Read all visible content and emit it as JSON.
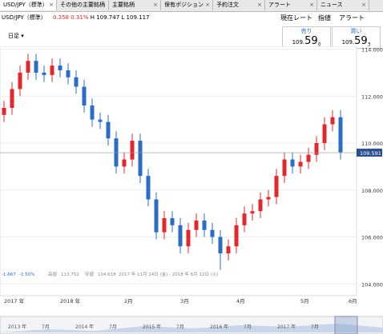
{
  "tabs": [
    "USD/JPY（標準）",
    "その他の主要銘柄",
    "主要銘柄",
    "保有ポジション",
    "予約注文",
    "アラート",
    "ニュース"
  ],
  "header": {
    "symbol": "USD/JPY（標準）",
    "change": "0.358",
    "change_pct": "0.31%",
    "high": "H 109.747",
    "low": "L 109.117",
    "buttons": [
      "現在レート",
      "指値",
      "アラート"
    ]
  },
  "toolbar": {
    "interval": "日足"
  },
  "rates": [
    {
      "label": "売り",
      "prefix": "109.",
      "big": "59",
      "pip": "0"
    },
    {
      "label": "買い",
      "prefix": "109.",
      "big": "59",
      "pip": "3"
    }
  ],
  "info": {
    "change": "-1.667",
    "change_pct": "-1.50%",
    "high_label": "高値",
    "high": "113.752",
    "low_label": "安値",
    "low": "104.618",
    "range": "2017 年 11月 24日 (金) - 2018 年 6月 12日 (火)"
  },
  "navigator": [
    "2013 年",
    "7月",
    "2014 年",
    "7月",
    "2015 年",
    "7月",
    "2016 年",
    "7月",
    "2017 年",
    "7月"
  ],
  "chart_data": {
    "type": "candlestick",
    "categories": [
      "2017 年",
      null,
      null,
      null,
      null,
      null,
      null,
      "2018 年",
      null,
      null,
      null,
      null,
      null,
      null,
      null,
      "2月",
      null,
      null,
      null,
      null,
      null,
      null,
      "3月",
      null,
      null,
      null,
      null,
      null,
      null,
      "4月",
      null,
      null,
      null,
      null,
      null,
      null,
      null,
      "5月",
      null,
      null,
      null,
      null,
      null,
      "6月"
    ],
    "open": [
      111.2,
      111.5,
      112.3,
      113.0,
      113.5,
      113.0,
      112.9,
      113.3,
      113.1,
      112.8,
      112.4,
      111.6,
      111.0,
      110.9,
      110.2,
      109.0,
      109.3,
      110.1,
      108.6,
      107.6,
      106.2,
      106.8,
      106.5,
      105.6,
      106.3,
      106.7,
      106.3,
      106.0,
      105.3,
      105.6,
      106.5,
      107.0,
      107.1,
      107.6,
      107.7,
      108.6,
      109.3,
      109.0,
      109.2,
      109.5,
      110.0,
      110.8,
      111.1,
      null
    ],
    "high": [
      111.8,
      112.6,
      113.3,
      113.8,
      113.8,
      113.3,
      113.6,
      113.6,
      113.4,
      113.1,
      112.7,
      111.9,
      111.3,
      111.2,
      110.5,
      109.6,
      110.4,
      110.4,
      108.9,
      107.9,
      107.1,
      107.1,
      106.8,
      106.6,
      107.0,
      107.0,
      106.6,
      106.3,
      105.9,
      106.8,
      107.3,
      107.4,
      107.9,
      108.0,
      108.9,
      109.6,
      109.6,
      109.5,
      109.8,
      110.3,
      111.1,
      111.4,
      111.4,
      null
    ],
    "low": [
      110.9,
      111.2,
      112.0,
      112.7,
      112.7,
      112.6,
      112.6,
      112.8,
      112.5,
      112.1,
      111.3,
      110.7,
      110.6,
      109.9,
      108.7,
      108.7,
      109.0,
      108.3,
      107.3,
      105.9,
      105.9,
      106.2,
      105.3,
      105.3,
      106.0,
      106.0,
      105.7,
      104.6,
      105.0,
      105.3,
      106.2,
      106.7,
      106.8,
      107.3,
      107.4,
      108.3,
      108.7,
      108.7,
      108.9,
      109.2,
      109.7,
      110.5,
      109.3,
      null
    ],
    "close": [
      111.5,
      112.3,
      113.0,
      113.5,
      113.0,
      112.9,
      113.3,
      113.1,
      112.8,
      112.4,
      111.6,
      111.0,
      110.9,
      110.2,
      109.0,
      109.3,
      110.1,
      108.6,
      107.6,
      106.2,
      106.8,
      106.5,
      105.6,
      106.3,
      106.7,
      106.3,
      106.0,
      105.3,
      105.6,
      106.5,
      107.0,
      107.1,
      107.6,
      107.7,
      108.6,
      109.3,
      109.0,
      109.2,
      109.5,
      110.0,
      110.8,
      111.1,
      109.6,
      null
    ],
    "up_color": "#e0282e",
    "down_color": "#2b6cc4",
    "ylim": [
      103.5,
      114.12
    ],
    "yticks": [
      {
        "value": 104,
        "label": "104.000"
      },
      {
        "value": 106,
        "label": "106.000"
      },
      {
        "value": 108,
        "label": "108.000"
      },
      {
        "value": 110,
        "label": "110.000"
      },
      {
        "value": 112,
        "label": "112.000"
      },
      {
        "value": 114,
        "label": "114.000"
      }
    ],
    "current": {
      "value": 109.591,
      "label": "109.591"
    }
  }
}
